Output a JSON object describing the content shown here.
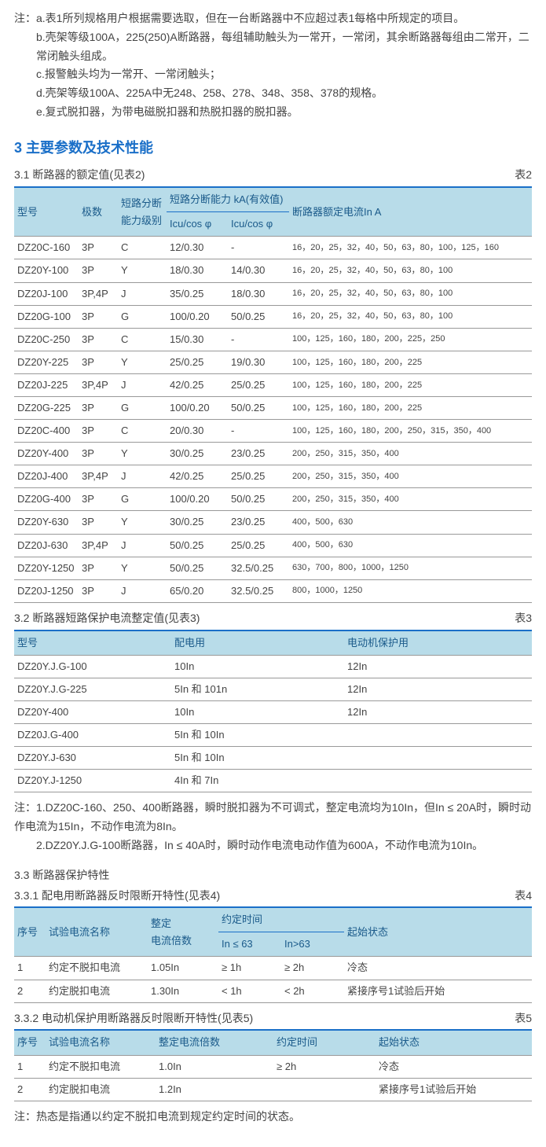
{
  "notes_top": {
    "prefix": "注：",
    "lines": [
      "a.表1所列规格用户根据需要选取，但在一台断路器中不应超过表1每格中所规定的项目。",
      "b.壳架等级100A，225(250)A断路器，每组辅助触头为一常开，一常闭，其余断路器每组由二常开，二常闭触头组成。",
      "c.报警触头均为一常开、一常闭触头；",
      "d.壳架等级100A、225A中无248、258、278、348、358、378的规格。",
      "e.复式脱扣器，为带电磁脱扣器和热脱扣器的脱扣器。"
    ]
  },
  "section3_title": "3 主要参数及技术性能",
  "t2": {
    "subtitle": "3.1 断路器的额定值(见表2)",
    "ref": "表2",
    "headers": {
      "model": "型号",
      "poles": "极数",
      "break_level": "短路分断\n能力级别",
      "break_cap": "短路分断能力 kA(有效值)",
      "icu1": "Icu/cos φ",
      "icu2": "Icu/cos φ",
      "rated": "断路器额定电流In A"
    },
    "rows": [
      {
        "m": "DZ20C-160",
        "p": "3P",
        "l": "C",
        "i1": "12/0.30",
        "i2": "-",
        "r": "16，20，25，32，40，50，63，80，100，125，160"
      },
      {
        "m": "DZ20Y-100",
        "p": "3P",
        "l": "Y",
        "i1": "18/0.30",
        "i2": "14/0.30",
        "r": "16，20，25，32，40，50，63，80，100"
      },
      {
        "m": "DZ20J-100",
        "p": "3P,4P",
        "l": "J",
        "i1": "35/0.25",
        "i2": "18/0.30",
        "r": "16，20，25，32，40，50，63，80，100"
      },
      {
        "m": "DZ20G-100",
        "p": "3P",
        "l": "G",
        "i1": "100/0.20",
        "i2": "50/0.25",
        "r": "16，20，25，32，40，50，63，80，100"
      },
      {
        "m": "DZ20C-250",
        "p": "3P",
        "l": "C",
        "i1": "15/0.30",
        "i2": "-",
        "r": "100，125，160，180，200，225，250"
      },
      {
        "m": "DZ20Y-225",
        "p": "3P",
        "l": "Y",
        "i1": "25/0.25",
        "i2": "19/0.30",
        "r": "100，125，160，180，200，225"
      },
      {
        "m": "DZ20J-225",
        "p": "3P,4P",
        "l": "J",
        "i1": "42/0.25",
        "i2": "25/0.25",
        "r": "100，125，160，180，200，225"
      },
      {
        "m": "DZ20G-225",
        "p": "3P",
        "l": "G",
        "i1": "100/0.20",
        "i2": "50/0.25",
        "r": "100，125，160，180，200，225"
      },
      {
        "m": "DZ20C-400",
        "p": "3P",
        "l": "C",
        "i1": "20/0.30",
        "i2": "-",
        "r": "100，125，160，180，200，250，315，350，400"
      },
      {
        "m": "DZ20Y-400",
        "p": "3P",
        "l": "Y",
        "i1": "30/0.25",
        "i2": "23/0.25",
        "r": "200，250，315，350，400"
      },
      {
        "m": "DZ20J-400",
        "p": "3P,4P",
        "l": "J",
        "i1": "42/0.25",
        "i2": "25/0.25",
        "r": "200，250，315，350，400"
      },
      {
        "m": "DZ20G-400",
        "p": "3P",
        "l": "G",
        "i1": "100/0.20",
        "i2": "50/0.25",
        "r": "200，250，315，350，400"
      },
      {
        "m": "DZ20Y-630",
        "p": "3P",
        "l": "Y",
        "i1": "30/0.25",
        "i2": "23/0.25",
        "r": "400，500，630"
      },
      {
        "m": "DZ20J-630",
        "p": "3P,4P",
        "l": "J",
        "i1": "50/0.25",
        "i2": "25/0.25",
        "r": "400，500，630"
      },
      {
        "m": "DZ20Y-1250",
        "p": "3P",
        "l": "Y",
        "i1": "50/0.25",
        "i2": "32.5/0.25",
        "r": "630，700，800，1000，1250"
      },
      {
        "m": "DZ20J-1250",
        "p": "3P",
        "l": "J",
        "i1": "65/0.20",
        "i2": "32.5/0.25",
        "r": "800，1000，1250"
      }
    ]
  },
  "t3": {
    "subtitle": "3.2 断路器短路保护电流整定值(见表3)",
    "ref": "表3",
    "headers": {
      "model": "型号",
      "dist": "配电用",
      "motor": "电动机保护用"
    },
    "rows": [
      {
        "m": "DZ20Y.J.G-100",
        "d": "10In",
        "mo": "12In"
      },
      {
        "m": "DZ20Y.J.G-225",
        "d": "5In 和 101n",
        "mo": "12In"
      },
      {
        "m": "DZ20Y-400",
        "d": "10In",
        "mo": "12In"
      },
      {
        "m": "DZ20J.G-400",
        "d": "5In 和 10In",
        "mo": ""
      },
      {
        "m": "DZ20Y.J-630",
        "d": "5In 和 10In",
        "mo": ""
      },
      {
        "m": "DZ20Y.J-1250",
        "d": "4In 和 7In",
        "mo": ""
      }
    ],
    "notes": [
      "注：1.DZ20C-160、250、400断路器，瞬时脱扣器为不可调式，整定电流均为10In，但In ≤ 20A时，瞬时动作电流为15In，不动作电流为8In。",
      "　　2.DZ20Y.J.G-100断路器，In ≤ 40A时，瞬时动作电流电动作值为600A，不动作电流为10In。"
    ]
  },
  "s33_title": "3.3 断路器保护特性",
  "t4": {
    "subtitle": "3.3.1 配电用断路器反时限断开特性(见表4)",
    "ref": "表4",
    "headers": {
      "no": "序号",
      "name": "试验电流名称",
      "mult": "整定\n电流倍数",
      "time": "约定时间",
      "t1": "In ≤ 63",
      "t2": "In>63",
      "start": "起始状态"
    },
    "rows": [
      {
        "n": "1",
        "nm": "约定不脱扣电流",
        "mu": "1.05In",
        "t1": "≥ 1h",
        "t2": "≥ 2h",
        "s": "冷态"
      },
      {
        "n": "2",
        "nm": "约定脱扣电流",
        "mu": "1.30In",
        "t1": "< 1h",
        "t2": "< 2h",
        "s": "紧接序号1试验后开始"
      }
    ]
  },
  "t5": {
    "subtitle": "3.3.2 电动机保护用断路器反时限断开特性(见表5)",
    "ref": "表5",
    "headers": {
      "no": "序号",
      "name": "试验电流名称",
      "mult": "整定电流倍数",
      "time": "约定时间",
      "start": "起始状态"
    },
    "rows": [
      {
        "n": "1",
        "nm": "约定不脱扣电流",
        "mu": "1.0In",
        "t": "≥ 2h",
        "s": "冷态"
      },
      {
        "n": "2",
        "nm": "约定脱扣电流",
        "mu": "1.2In",
        "t": "",
        "s": "紧接序号1试验后开始"
      }
    ],
    "footnote": "注：热态是指通以约定不脱扣电流到规定约定时间的状态。"
  },
  "colors": {
    "header_bg": "#b8dce9",
    "accent": "#1a6fc8"
  }
}
